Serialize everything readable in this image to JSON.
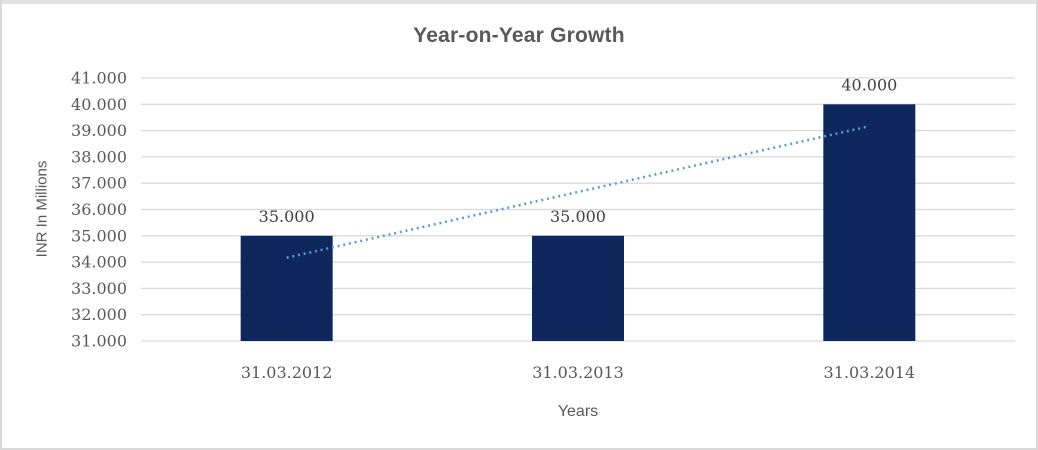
{
  "chart_data": {
    "type": "bar",
    "title": "Year-on-Year Growth",
    "xlabel": "Years",
    "ylabel": "INR In Millions",
    "categories": [
      "31.03.2012",
      "31.03.2013",
      "31.03.2014"
    ],
    "values": [
      35,
      35,
      40
    ],
    "value_labels": [
      "35.000",
      "35.000",
      "40.000"
    ],
    "ylim": [
      31,
      41
    ],
    "ytick_step": 1,
    "yticks": [
      "41.000",
      "40.000",
      "39.000",
      "38.000",
      "37.000",
      "36.000",
      "35.000",
      "34.000",
      "33.000",
      "32.000",
      "31.000"
    ],
    "grid": true,
    "legend": "none",
    "bar_color": "#0e275c",
    "gridline_color": "#d9d9d9",
    "axis_text_color": "#595959",
    "data_label_color": "#3f3f3f",
    "title_color": "#595959",
    "trendline": {
      "type": "linear",
      "style": "dotted",
      "color": "#5b9bd5",
      "start_value": 34.167,
      "end_value": 39.167
    }
  },
  "frame": {
    "background": "#ffffff",
    "border_color": "#d9d9d9"
  }
}
